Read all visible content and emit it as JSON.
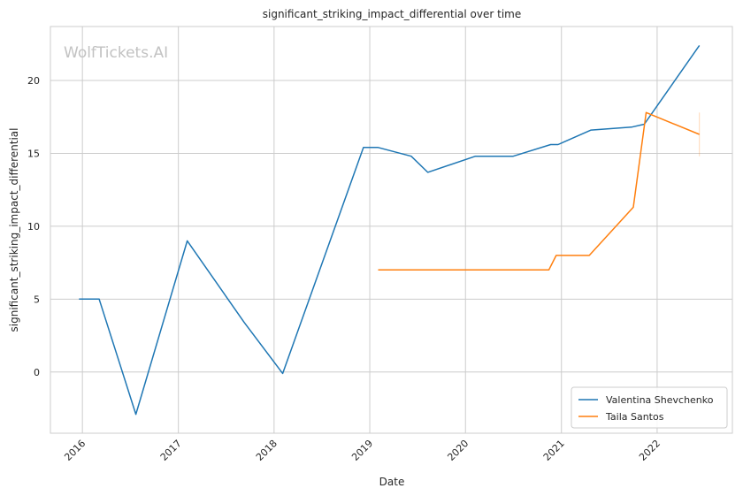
{
  "watermark": "WolfTickets.AI",
  "chart_data": {
    "type": "line",
    "title": "significant_striking_impact_differential over time",
    "xlabel": "Date",
    "ylabel": "significant_striking_impact_differential",
    "x_ticks": [
      "2016",
      "2017",
      "2018",
      "2019",
      "2020",
      "2021",
      "2022"
    ],
    "y_ticks": [
      0,
      5,
      10,
      15,
      20
    ],
    "xlim": [
      "2015-09-01",
      "2022-10-15"
    ],
    "ylim": [
      -4.2,
      23.7
    ],
    "grid": true,
    "legend_position": "lower-right",
    "series": [
      {
        "name": "Valentina Shevchenko",
        "color": "#1f77b4",
        "points": [
          [
            "2015-12-19",
            5.0
          ],
          [
            "2016-03-05",
            5.0
          ],
          [
            "2016-07-23",
            -2.9
          ],
          [
            "2017-02-04",
            9.0
          ],
          [
            "2017-09-09",
            3.4
          ],
          [
            "2018-02-03",
            -0.1
          ],
          [
            "2018-12-08",
            15.4
          ],
          [
            "2019-02-02",
            15.4
          ],
          [
            "2019-06-08",
            14.8
          ],
          [
            "2019-08-10",
            13.7
          ],
          [
            "2020-02-08",
            14.8
          ],
          [
            "2020-07-01",
            14.8
          ],
          [
            "2020-11-21",
            15.6
          ],
          [
            "2020-12-19",
            15.6
          ],
          [
            "2021-04-24",
            16.6
          ],
          [
            "2021-09-25",
            16.8
          ],
          [
            "2021-11-13",
            17.0
          ],
          [
            "2022-06-11",
            22.4
          ]
        ]
      },
      {
        "name": "Taila Santos",
        "color": "#ff7f0e",
        "points": [
          [
            "2019-02-02",
            7.0
          ],
          [
            "2020-11-14",
            7.0
          ],
          [
            "2020-12-12",
            8.0
          ],
          [
            "2021-04-17",
            8.0
          ],
          [
            "2021-10-02",
            11.3
          ],
          [
            "2021-11-20",
            17.8
          ],
          [
            "2022-06-11",
            16.3
          ]
        ],
        "error_band": {
          "x": "2022-06-11",
          "low": 14.8,
          "high": 17.8
        }
      }
    ]
  }
}
